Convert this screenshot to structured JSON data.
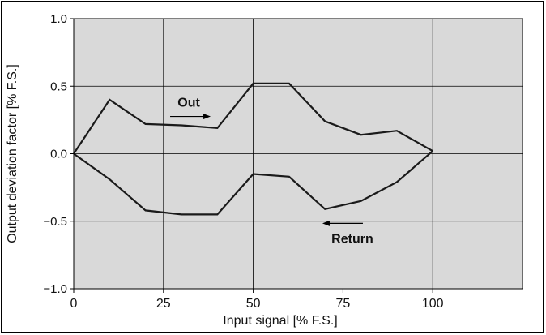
{
  "chart_data": {
    "type": "line",
    "title": "",
    "xlabel": "Input signal   [% F.S.]",
    "ylabel": "Output deviation factor   [% F.S.]",
    "xlim": [
      0,
      125
    ],
    "ylim": [
      -1.0,
      1.0
    ],
    "x_ticks": [
      0,
      25,
      50,
      75,
      100
    ],
    "x_tick_labels": [
      "0",
      "25",
      "50",
      "75",
      "100"
    ],
    "y_ticks": [
      -1.0,
      -0.5,
      0.0,
      0.5,
      1.0
    ],
    "y_tick_labels": [
      "−1.0",
      "−0.5",
      "0.0",
      "0.5",
      "1.0"
    ],
    "grid": true,
    "plot_background": "#d9d9d9",
    "line_color": "#1a1a1a",
    "series": [
      {
        "name": "Out",
        "x": [
          0,
          10,
          20,
          30,
          40,
          50,
          60,
          70,
          80,
          90,
          100
        ],
        "values": [
          0.0,
          0.4,
          0.22,
          0.21,
          0.19,
          0.52,
          0.52,
          0.24,
          0.14,
          0.17,
          0.02
        ]
      },
      {
        "name": "Return",
        "x": [
          0,
          10,
          20,
          30,
          40,
          50,
          60,
          70,
          80,
          90,
          100
        ],
        "values": [
          0.0,
          -0.19,
          -0.42,
          -0.45,
          -0.45,
          -0.15,
          -0.17,
          -0.41,
          -0.35,
          -0.21,
          0.02
        ]
      }
    ],
    "annotations": [
      {
        "series": "Out",
        "text": "Out",
        "arrow": "right",
        "at_x": 32.5,
        "at_y": 0.33
      },
      {
        "series": "Return",
        "text": "Return",
        "arrow": "left",
        "at_x": 74,
        "at_y": -0.6
      }
    ]
  }
}
